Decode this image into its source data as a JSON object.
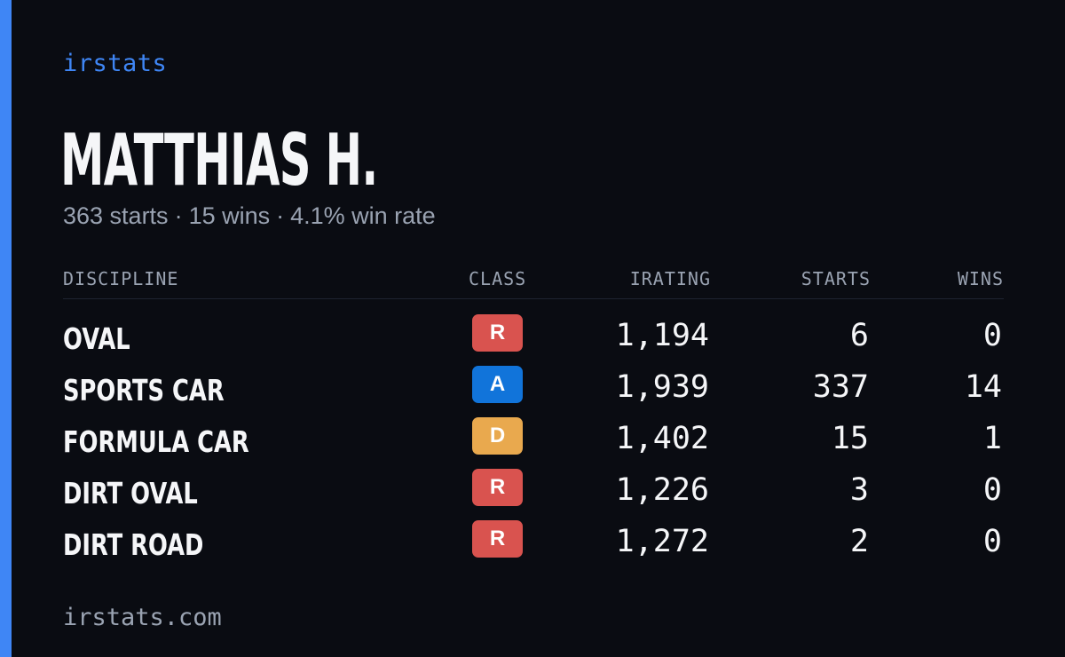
{
  "brand": "irstats",
  "driver_name": "MATTHIAS H.",
  "summary": {
    "starts": "363 starts",
    "wins": "15 wins",
    "win_rate": "4.1% win rate",
    "separator": "·"
  },
  "table": {
    "headers": {
      "discipline": "DISCIPLINE",
      "class": "CLASS",
      "irating": "IRATING",
      "starts": "STARTS",
      "wins": "WINS"
    },
    "rows": [
      {
        "discipline": "OVAL",
        "class": "R",
        "irating": "1,194",
        "starts": "6",
        "wins": "0"
      },
      {
        "discipline": "SPORTS CAR",
        "class": "A",
        "irating": "1,939",
        "starts": "337",
        "wins": "14"
      },
      {
        "discipline": "FORMULA CAR",
        "class": "D",
        "irating": "1,402",
        "starts": "15",
        "wins": "1"
      },
      {
        "discipline": "DIRT OVAL",
        "class": "R",
        "irating": "1,226",
        "starts": "3",
        "wins": "0"
      },
      {
        "discipline": "DIRT ROAD",
        "class": "R",
        "irating": "1,272",
        "starts": "2",
        "wins": "0"
      }
    ]
  },
  "class_colors": {
    "R": "#d9534f",
    "A": "#1174da",
    "D": "#e9a94e"
  },
  "accent_color": "#3f86f5",
  "footer": "irstats.com"
}
